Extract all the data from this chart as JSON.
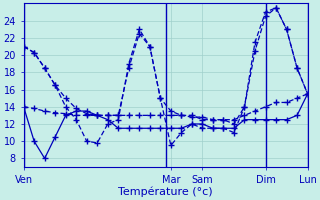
{
  "background_color": "#c8eee8",
  "grid_color": "#a0d0cc",
  "line_color": "#0000bb",
  "xlabel": "Température (°c)",
  "ylim": [
    7,
    26
  ],
  "yticks": [
    8,
    10,
    12,
    14,
    16,
    18,
    20,
    22,
    24
  ],
  "day_labels": [
    "Ven",
    "Mar",
    "Sam",
    "Dim",
    "Lun"
  ],
  "day_tick_positions": [
    0,
    14,
    17,
    23,
    27
  ],
  "vline_positions": [
    0,
    13.5,
    23,
    27
  ],
  "xlim": [
    0,
    27
  ],
  "series": [
    [
      21.0,
      20.3,
      18.5,
      16.5,
      15.0,
      13.8,
      13.2,
      13.0,
      13.0,
      13.0,
      18.5,
      22.5,
      21.0,
      15.0,
      13.5,
      13.0,
      13.0,
      12.5,
      12.5,
      12.5,
      12.0,
      14.0,
      20.5,
      24.5,
      25.5,
      23.0,
      18.5,
      15.5
    ],
    [
      21.0,
      20.3,
      18.5,
      16.5,
      14.0,
      12.5,
      10.0,
      9.8,
      12.0,
      12.5,
      19.0,
      23.0,
      21.0,
      15.0,
      9.5,
      11.0,
      12.0,
      11.5,
      11.5,
      11.5,
      11.0,
      14.0,
      21.5,
      25.0,
      25.5,
      23.0,
      18.5,
      15.5
    ],
    [
      14.0,
      13.8,
      13.5,
      13.3,
      13.2,
      13.0,
      13.0,
      13.0,
      13.0,
      13.0,
      13.0,
      13.0,
      13.0,
      13.0,
      13.0,
      13.0,
      12.8,
      12.8,
      12.5,
      12.5,
      12.5,
      13.0,
      13.5,
      14.0,
      14.5,
      14.5,
      15.0,
      15.5
    ],
    [
      14.0,
      10.0,
      8.0,
      10.5,
      13.0,
      13.5,
      13.5,
      13.0,
      12.5,
      11.5,
      11.5,
      11.5,
      11.5,
      11.5,
      11.5,
      11.5,
      12.0,
      12.0,
      11.5,
      11.5,
      11.5,
      12.5,
      12.5,
      12.5,
      12.5,
      12.5,
      13.0,
      15.5
    ]
  ],
  "line_styles": [
    "--",
    "--",
    "--",
    "-"
  ],
  "marker": "+"
}
